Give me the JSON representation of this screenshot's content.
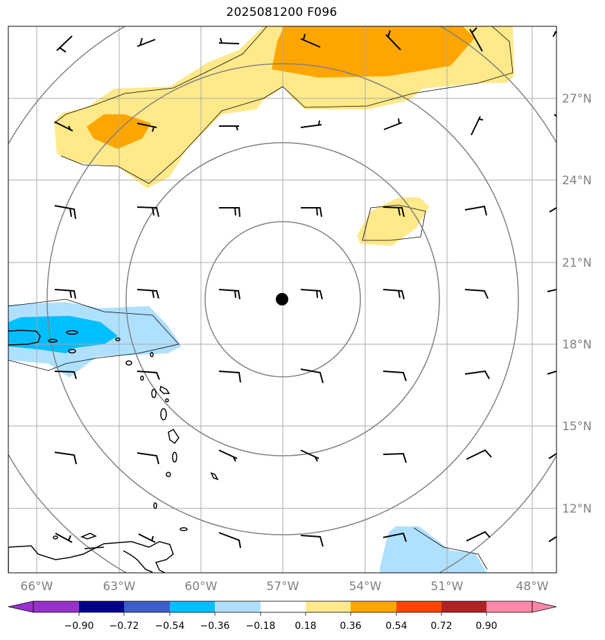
{
  "title": "2025081200 F096",
  "map": {
    "lon_labels": [
      "66°W",
      "63°W",
      "60°W",
      "57°W",
      "54°W",
      "51°W",
      "48°W"
    ],
    "lat_labels": [
      "27°N",
      "24°N",
      "21°N",
      "18°N",
      "15°N",
      "12°N"
    ],
    "center_marker": "storm-center"
  },
  "colorbar": {
    "ticks": [
      "−0.90",
      "−0.72",
      "−0.54",
      "−0.36",
      "−0.18",
      "0.18",
      "0.36",
      "0.54",
      "0.72",
      "0.90"
    ],
    "colors": [
      "#9932cc",
      "#00008b",
      "#3a5fcd",
      "#00bfff",
      "#b0e0ff",
      "#ffffff",
      "#ffe98a",
      "#ffa500",
      "#ff4500",
      "#b22222",
      "#ff88aa"
    ]
  }
}
